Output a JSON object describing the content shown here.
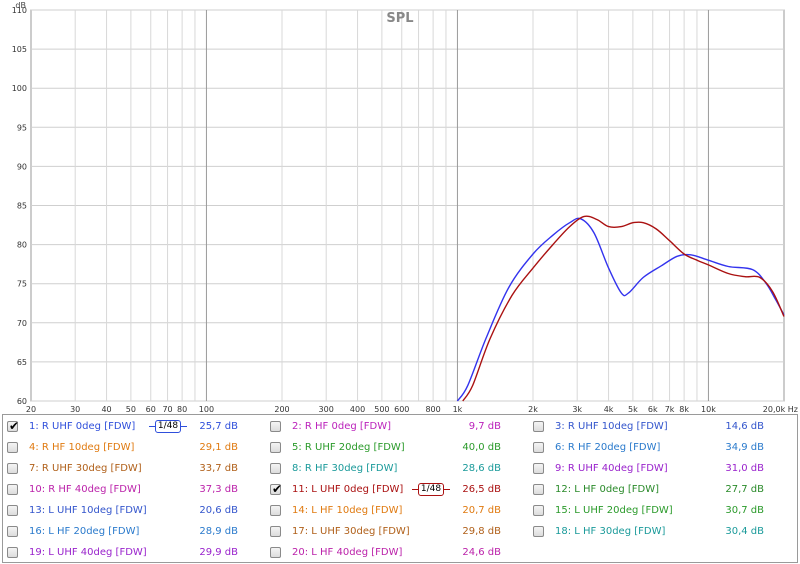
{
  "chart_data": {
    "type": "line",
    "title": "SPL",
    "y_unit": "dB",
    "x_unit": "Hz",
    "xscale": "log",
    "xlim": [
      20,
      20000
    ],
    "ylim": [
      60,
      110
    ],
    "grid": true,
    "x_ticks": [
      {
        "v": 20,
        "t": "20"
      },
      {
        "v": 30,
        "t": "30"
      },
      {
        "v": 40,
        "t": "40"
      },
      {
        "v": 50,
        "t": "50"
      },
      {
        "v": 60,
        "t": "60"
      },
      {
        "v": 70,
        "t": "70"
      },
      {
        "v": 80,
        "t": "80"
      },
      {
        "v": 100,
        "t": "100"
      },
      {
        "v": 200,
        "t": "200"
      },
      {
        "v": 300,
        "t": "300"
      },
      {
        "v": 400,
        "t": "400"
      },
      {
        "v": 500,
        "t": "500"
      },
      {
        "v": 600,
        "t": "600"
      },
      {
        "v": 800,
        "t": "800"
      },
      {
        "v": 1000,
        "t": "1k"
      },
      {
        "v": 2000,
        "t": "2k"
      },
      {
        "v": 3000,
        "t": "3k"
      },
      {
        "v": 4000,
        "t": "4k"
      },
      {
        "v": 5000,
        "t": "5k"
      },
      {
        "v": 6000,
        "t": "6k"
      },
      {
        "v": 7000,
        "t": "7k"
      },
      {
        "v": 8000,
        "t": "8k"
      },
      {
        "v": 10000,
        "t": "10k"
      },
      {
        "v": 20000,
        "t": "20,0k Hz"
      }
    ],
    "x_major": [
      100,
      1000,
      10000
    ],
    "x_minor": [
      30,
      40,
      50,
      60,
      70,
      80,
      90,
      200,
      300,
      400,
      500,
      600,
      700,
      800,
      900,
      2000,
      3000,
      4000,
      5000,
      6000,
      7000,
      8000,
      9000
    ],
    "y_ticks": [
      60,
      65,
      70,
      75,
      80,
      85,
      90,
      95,
      100,
      105,
      110
    ],
    "series": [
      {
        "name": "1: R UHF 0deg [FDW]",
        "color": "#3333ee",
        "x": [
          1000,
          1100,
          1300,
          1600,
          2000,
          2400,
          2800,
          3100,
          3500,
          4000,
          4500,
          4800,
          5500,
          6500,
          7500,
          8500,
          10000,
          12000,
          15000,
          17000,
          18500,
          20000
        ],
        "y": [
          58,
          62,
          68,
          74.5,
          78.8,
          81.2,
          82.8,
          83.3,
          81.5,
          77.0,
          73.8,
          73.8,
          75.8,
          77.3,
          78.5,
          78.7,
          78.0,
          77.2,
          76.8,
          75.0,
          73.0,
          71.0
        ]
      },
      {
        "name": "11: L UHF 0deg [FDW]",
        "color": "#aa1111",
        "x": [
          1050,
          1150,
          1350,
          1650,
          2000,
          2400,
          2800,
          3200,
          3600,
          4000,
          4500,
          5000,
          5500,
          6200,
          7000,
          8000,
          9000,
          10000,
          12000,
          14000,
          16000,
          18000,
          20000
        ],
        "y": [
          58,
          62,
          68,
          73.5,
          77.0,
          80.0,
          82.3,
          83.6,
          83.2,
          82.3,
          82.3,
          82.8,
          82.8,
          82.0,
          80.5,
          78.8,
          78.0,
          77.4,
          76.3,
          75.9,
          75.8,
          74.0,
          70.8
        ]
      }
    ]
  },
  "legend": {
    "items": [
      {
        "id": "1",
        "label": "1: R UHF 0deg [FDW]",
        "value": "25,7 dB",
        "color": "#2f4fdb",
        "checked": true,
        "smoothing": "1/48"
      },
      {
        "id": "2",
        "label": "2: R HF 0deg [FDW]",
        "value": "9,7 dB",
        "color": "#bb22bb",
        "checked": false
      },
      {
        "id": "3",
        "label": "3: R UHF 10deg [FDW]",
        "value": "14,6 dB",
        "color": "#3355cc",
        "checked": false
      },
      {
        "id": "4",
        "label": "4: R HF 10deg [FDW]",
        "value": "29,1 dB",
        "color": "#e07a10",
        "checked": false
      },
      {
        "id": "5",
        "label": "5: R UHF 20deg [FDW]",
        "value": "40,0 dB",
        "color": "#2a9a2a",
        "checked": false
      },
      {
        "id": "6",
        "label": "6: R HF 20deg [FDW]",
        "value": "34,9 dB",
        "color": "#2a7acc",
        "checked": false
      },
      {
        "id": "7",
        "label": "7: R UHF 30deg [FDW]",
        "value": "33,7 dB",
        "color": "#b0601a",
        "checked": false
      },
      {
        "id": "8",
        "label": "8: R HF 30deg [FDW]",
        "value": "28,6 dB",
        "color": "#1a9a9a",
        "checked": false
      },
      {
        "id": "9",
        "label": "9: R UHF 40deg [FDW]",
        "value": "31,0 dB",
        "color": "#9922cc",
        "checked": false
      },
      {
        "id": "10",
        "label": "10: R HF 40deg [FDW]",
        "value": "37,3 dB",
        "color": "#bb22aa",
        "checked": false
      },
      {
        "id": "11",
        "label": "11: L UHF 0deg [FDW]",
        "value": "26,5 dB",
        "color": "#aa1111",
        "checked": true,
        "smoothing": "1/48"
      },
      {
        "id": "12",
        "label": "12: L HF 0deg [FDW]",
        "value": "27,7 dB",
        "color": "#2a8a2a",
        "checked": false
      },
      {
        "id": "13",
        "label": "13: L UHF 10deg [FDW]",
        "value": "20,6 dB",
        "color": "#3355cc",
        "checked": false
      },
      {
        "id": "14",
        "label": "14: L HF 10deg [FDW]",
        "value": "20,7 dB",
        "color": "#e07a10",
        "checked": false
      },
      {
        "id": "15",
        "label": "15: L UHF 20deg [FDW]",
        "value": "30,7 dB",
        "color": "#2a9a2a",
        "checked": false
      },
      {
        "id": "16",
        "label": "16: L HF 20deg [FDW]",
        "value": "28,9 dB",
        "color": "#2a7acc",
        "checked": false
      },
      {
        "id": "17",
        "label": "17: L UHF 30deg [FDW]",
        "value": "29,8 dB",
        "color": "#b0601a",
        "checked": false
      },
      {
        "id": "18",
        "label": "18: L HF 30deg [FDW]",
        "value": "30,4 dB",
        "color": "#1a9a9a",
        "checked": false
      },
      {
        "id": "19",
        "label": "19: L UHF 40deg [FDW]",
        "value": "29,9 dB",
        "color": "#9922cc",
        "checked": false
      },
      {
        "id": "20",
        "label": "20: L HF 40deg [FDW]",
        "value": "24,6 dB",
        "color": "#bb22aa",
        "checked": false
      }
    ]
  }
}
